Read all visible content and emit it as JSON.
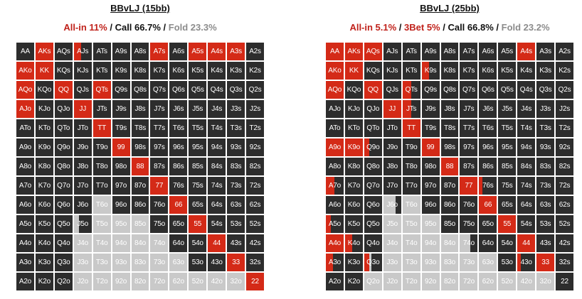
{
  "ranks": [
    "A",
    "K",
    "Q",
    "J",
    "T",
    "9",
    "8",
    "7",
    "6",
    "5",
    "4",
    "3",
    "2"
  ],
  "colors": {
    "cell": "#2d2d2d",
    "allin": "#d42a17",
    "fold": "#c9c9c9",
    "subtitle_red": "#c0221b",
    "subtitle_gray": "#8c8c8c"
  },
  "charts": [
    {
      "title": "BBvLJ (15bb)",
      "allin": "All-in 11%",
      "threebet": "",
      "call": "Call 66.7%",
      "fold": "Fold 23.3%",
      "allin_cells": {
        "AKs": 1,
        "AJs": 0.4,
        "A7s": 1,
        "A5s": 1,
        "A4s": 1,
        "A3s": 1,
        "AKo": 1,
        "KK": 1,
        "AQo": 1,
        "QQ": 1,
        "QTs": 1,
        "AJo": 1,
        "JJ": 1,
        "TT": 1,
        "99": 1,
        "88": 1,
        "77": 1,
        "66": 1,
        "55": 1,
        "44": 1,
        "33": 1,
        "22": 1
      },
      "fold_cells": {
        "T6o": 1,
        "T5o": 1,
        "95o": 1,
        "85o": 1,
        "J4o": 1,
        "T4o": 1,
        "94o": 1,
        "84o": 1,
        "74o": 1,
        "J3o": 1,
        "T3o": 1,
        "93o": 1,
        "83o": 1,
        "73o": 1,
        "63o": 1,
        "J2o": 1,
        "T2o": 1,
        "92o": 1,
        "82o": 1,
        "72o": 1,
        "62o": 1,
        "52o": 1,
        "42o": 1,
        "32o": 1,
        "J5o": 0.3
      }
    },
    {
      "title": "BBvLJ (25bb)",
      "allin": "All-in 5.1%",
      "threebet": "3Bet 5%",
      "call": "Call 66.8%",
      "fold": "Fold 23.2%",
      "allin_cells": {
        "AA": 1,
        "AKs": 1,
        "AQs": 1,
        "A4s": 1,
        "AKo": 1,
        "KK": 1,
        "K9s": 0.4,
        "AQo": 1,
        "QQ": 1,
        "QTs": 0.5,
        "JJ": 1,
        "JTs": 0.5,
        "TT": 1,
        "A9o": 1,
        "K9o": 1,
        "Q9o": 0.3,
        "99": 1,
        "88": 1,
        "A7o": 0.5,
        "77": 1,
        "76s": 0.2,
        "66": 1,
        "55": 1,
        "44": 1,
        "33": 1,
        "A5o": 0.3,
        "A4o": 1,
        "K4o": 0.4,
        "A3o": 0.4,
        "Q3o": 0.3,
        "43o": 0.2,
        "A2o": 0,
        "K2o": 0
      },
      "fold_cells": {
        "J6o": 0.7,
        "T6o": 1,
        "J5o": 1,
        "T5o": 1,
        "95o": 1,
        "J4o": 1,
        "T4o": 1,
        "94o": 1,
        "84o": 1,
        "74o": 0.6,
        "J3o": 1,
        "T3o": 1,
        "93o": 1,
        "83o": 1,
        "73o": 1,
        "63o": 1,
        "Q3o": 0.4,
        "Q2o": 1,
        "J2o": 1,
        "T2o": 1,
        "92o": 1,
        "82o": 1,
        "72o": 1,
        "62o": 1,
        "52o": 1,
        "42o": 1,
        "32o": 1
      }
    }
  ]
}
